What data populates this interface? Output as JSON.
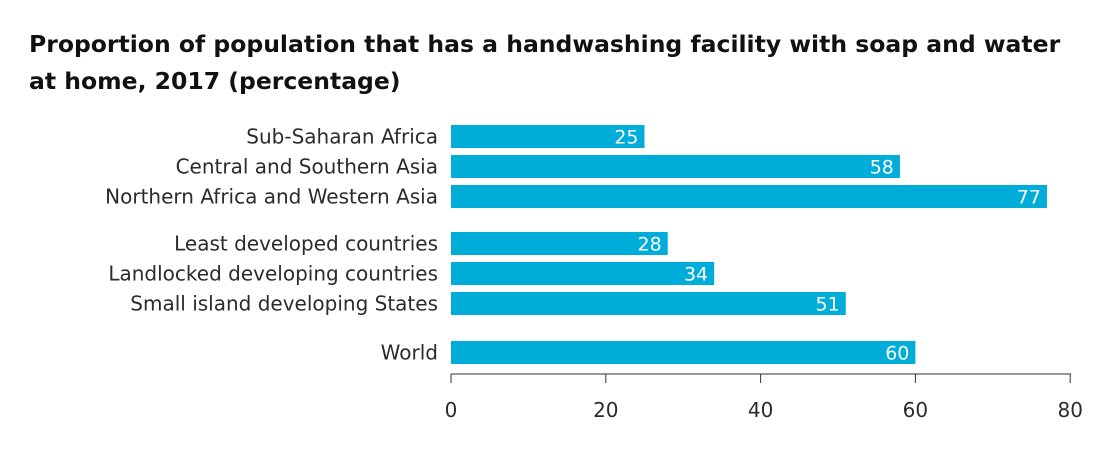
{
  "chart_data": {
    "type": "bar",
    "orientation": "horizontal",
    "title": "Proportion of population that has a handwashing facility with soap and water at home, 2017 (percentage)",
    "groups": [
      {
        "categories": [
          "Sub-Saharan Africa",
          "Central and Southern Asia",
          "Northern Africa and Western Asia"
        ],
        "values": [
          25,
          58,
          77
        ]
      },
      {
        "categories": [
          "Least developed countries",
          "Landlocked developing countries",
          "Small island developing States"
        ],
        "values": [
          28,
          34,
          51
        ]
      },
      {
        "categories": [
          "World"
        ],
        "values": [
          60
        ]
      }
    ],
    "xlim": [
      0,
      80
    ],
    "xticks": [
      0,
      20,
      40,
      60,
      80
    ],
    "bar_color": "#00ADD8",
    "grid": false,
    "legend": "none"
  }
}
